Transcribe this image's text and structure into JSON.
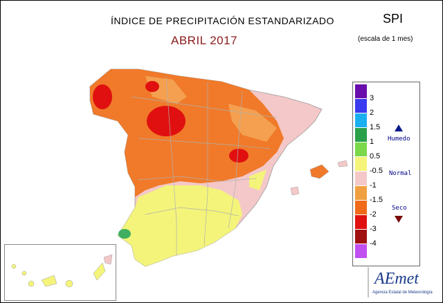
{
  "title": "ÍNDICE DE PRECIPITACIÓN ESTANDARIZADO",
  "subtitle": "ABRIL 2017",
  "index": "SPI",
  "scale": "(escala de 1 mes)",
  "legend": {
    "ticks": [
      "3",
      "2",
      "1.5",
      "1",
      "0.5",
      "-0.5",
      "-1",
      "-1.5",
      "-2",
      "-3",
      "-4"
    ],
    "classes": [
      {
        "color": "#6a0dad"
      },
      {
        "color": "#3a3af0"
      },
      {
        "color": "#1ab0f0"
      },
      {
        "color": "#2aa04a"
      },
      {
        "color": "#7ad84a"
      },
      {
        "color": "#f4f47a"
      },
      {
        "color": "#f4c8c8"
      },
      {
        "color": "#f0a040"
      },
      {
        "color": "#f06a1a"
      },
      {
        "color": "#e01010"
      },
      {
        "color": "#a01010"
      },
      {
        "color": "#c050f0"
      }
    ],
    "humid_label": "Humedo",
    "normal_label": "Normal",
    "dry_label": "Seco"
  },
  "logo": {
    "name": "AEmet",
    "agency": "Agencia Estatal de Meteorología"
  },
  "colors": {
    "orange": "#f07a2a",
    "dark_orange": "#e85a18",
    "red": "#e01010",
    "light_orange": "#f4a050",
    "pink": "#f4c8c8",
    "yellow": "#f4f47a",
    "green": "#40b060"
  }
}
